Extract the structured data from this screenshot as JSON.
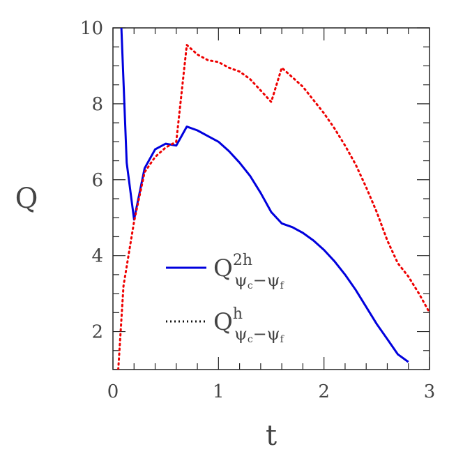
{
  "chart_data": {
    "type": "line",
    "title": "",
    "xlabel": "t",
    "ylabel": "Q",
    "xlim": [
      0,
      3
    ],
    "ylim": [
      1,
      10
    ],
    "xticks": [
      0,
      1,
      2,
      3
    ],
    "xtick_labels": [
      "0",
      "1",
      "2",
      "3"
    ],
    "yticks": [
      2,
      4,
      6,
      8,
      10
    ],
    "ytick_labels": [
      "2",
      "4",
      "6",
      "8",
      "10"
    ],
    "grid": false,
    "legend_position": "center",
    "series": [
      {
        "color": "#0000dd",
        "style": "solid",
        "legend": {
          "base": "Q",
          "sup": "2h",
          "sub_a": "ψ",
          "sub_a_idx": "c",
          "sub_sep": "−",
          "sub_b": "ψ",
          "sub_b_idx": "f"
        },
        "x": [
          0.08,
          0.13,
          0.2,
          0.3,
          0.4,
          0.5,
          0.6,
          0.7,
          0.8,
          0.9,
          1.0,
          1.1,
          1.2,
          1.3,
          1.4,
          1.5,
          1.6,
          1.7,
          1.8,
          1.9,
          2.0,
          2.1,
          2.2,
          2.3,
          2.4,
          2.5,
          2.6,
          2.7,
          2.8
        ],
        "y": [
          10.0,
          6.45,
          4.95,
          6.3,
          6.8,
          6.95,
          6.9,
          7.4,
          7.3,
          7.15,
          7.0,
          6.75,
          6.45,
          6.1,
          5.65,
          5.15,
          4.85,
          4.75,
          4.6,
          4.4,
          4.15,
          3.85,
          3.5,
          3.1,
          2.65,
          2.2,
          1.8,
          1.4,
          1.2
        ]
      },
      {
        "color": "#ee0000",
        "style": "dotted",
        "legend": {
          "base": "Q",
          "sup": "h",
          "sub_a": "ψ",
          "sub_a_idx": "c",
          "sub_sep": "−",
          "sub_b": "ψ",
          "sub_b_idx": "f"
        },
        "x": [
          0.05,
          0.1,
          0.2,
          0.3,
          0.4,
          0.5,
          0.6,
          0.7,
          0.8,
          0.9,
          1.0,
          1.1,
          1.2,
          1.3,
          1.4,
          1.5,
          1.6,
          1.7,
          1.8,
          1.9,
          2.0,
          2.1,
          2.2,
          2.3,
          2.4,
          2.5,
          2.6,
          2.7,
          2.8,
          2.9,
          3.0
        ],
        "y": [
          1.0,
          3.2,
          4.9,
          6.2,
          6.6,
          6.85,
          7.0,
          9.55,
          9.3,
          9.15,
          9.1,
          8.95,
          8.85,
          8.65,
          8.35,
          8.05,
          8.95,
          8.7,
          8.45,
          8.1,
          7.75,
          7.35,
          6.9,
          6.4,
          5.8,
          5.15,
          4.4,
          3.8,
          3.45,
          3.0,
          2.5
        ]
      }
    ]
  }
}
